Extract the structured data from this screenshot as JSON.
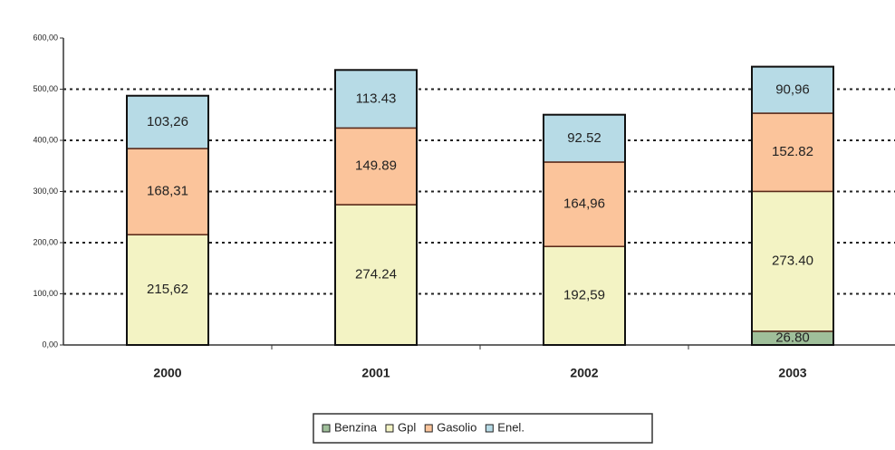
{
  "chart_data": {
    "type": "stacked_bar",
    "categories": [
      "2000",
      "2001",
      "2002",
      "2003"
    ],
    "series": [
      {
        "name": "Benzina",
        "color": "#9fbf9a",
        "values": [
          null,
          null,
          null,
          26.8
        ],
        "value_labels": [
          null,
          null,
          null,
          "26.80"
        ]
      },
      {
        "name": "Gpl",
        "color": "#f3f3c4",
        "values": [
          215.62,
          274.24,
          192.59,
          273.4
        ],
        "value_labels": [
          "215,62",
          "274.24",
          "192,59",
          "273.40"
        ]
      },
      {
        "name": "Gasolio",
        "color": "#fbc49b",
        "values": [
          168.31,
          149.89,
          164.96,
          152.82
        ],
        "value_labels": [
          "168,31",
          "149.89",
          "164,96",
          "152.82"
        ]
      },
      {
        "name": "Enel.",
        "color": "#b7dbe6",
        "values": [
          103.26,
          113.43,
          92.52,
          90.96
        ],
        "value_labels": [
          "103,26",
          "113.43",
          "92.52",
          "90,96"
        ]
      }
    ],
    "ylim": [
      0,
      600
    ],
    "yticks": [
      {
        "value": 0,
        "label": "0,00"
      },
      {
        "value": 100,
        "label": "100,00"
      },
      {
        "value": 200,
        "label": "200,00"
      },
      {
        "value": 300,
        "label": "300,00"
      },
      {
        "value": 400,
        "label": "400,00"
      },
      {
        "value": 500,
        "label": "500,00"
      },
      {
        "value": 600,
        "label": "600,00"
      }
    ],
    "grid": true,
    "legend": "bottom"
  }
}
